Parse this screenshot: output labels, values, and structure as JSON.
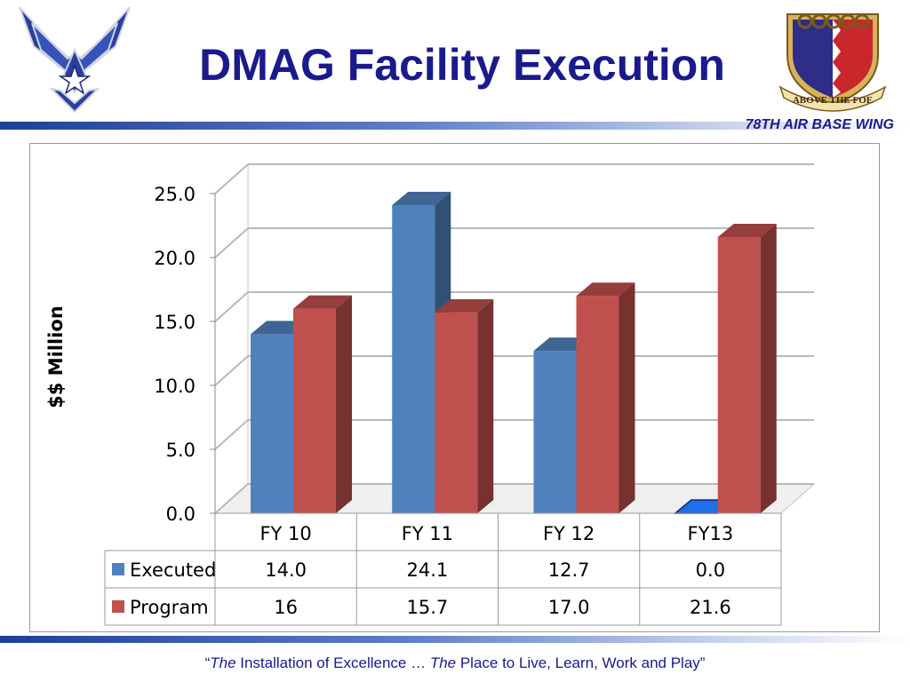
{
  "slide": {
    "title": "DMAG Facility Execution",
    "wing_label": "78TH AIR BASE WING",
    "footer": {
      "quote_open": "“",
      "the_1": "The",
      "part_1": " Installation of Excellence … ",
      "the_2": "The",
      "part_2": " Place to Live, Learn, Work and Play”"
    },
    "logos": {
      "left": "air-force-symbol",
      "right_motto": "ABOVE THE FOE"
    }
  },
  "chart_data": {
    "type": "bar",
    "style": "3d-clustered-column-with-data-table",
    "categories": [
      "FY 10",
      "FY 11",
      "FY 12",
      "FY13"
    ],
    "series": [
      {
        "name": "Executed",
        "values": [
          14.0,
          24.1,
          12.7,
          0.0
        ],
        "labels": [
          "14.0",
          "24.1",
          "12.7",
          "0.0"
        ],
        "color": "#4f81bd"
      },
      {
        "name": "Program",
        "values": [
          16,
          15.7,
          17.0,
          21.6
        ],
        "labels": [
          "16",
          "15.7",
          "17.0",
          "21.6"
        ],
        "color": "#c0504d"
      }
    ],
    "ylabel": "$$ Million",
    "ylim": [
      0,
      25
    ],
    "yticks": [
      "0.0",
      "5.0",
      "10.0",
      "15.0",
      "20.0",
      "25.0"
    ],
    "grid": true,
    "legend": "data-table"
  }
}
